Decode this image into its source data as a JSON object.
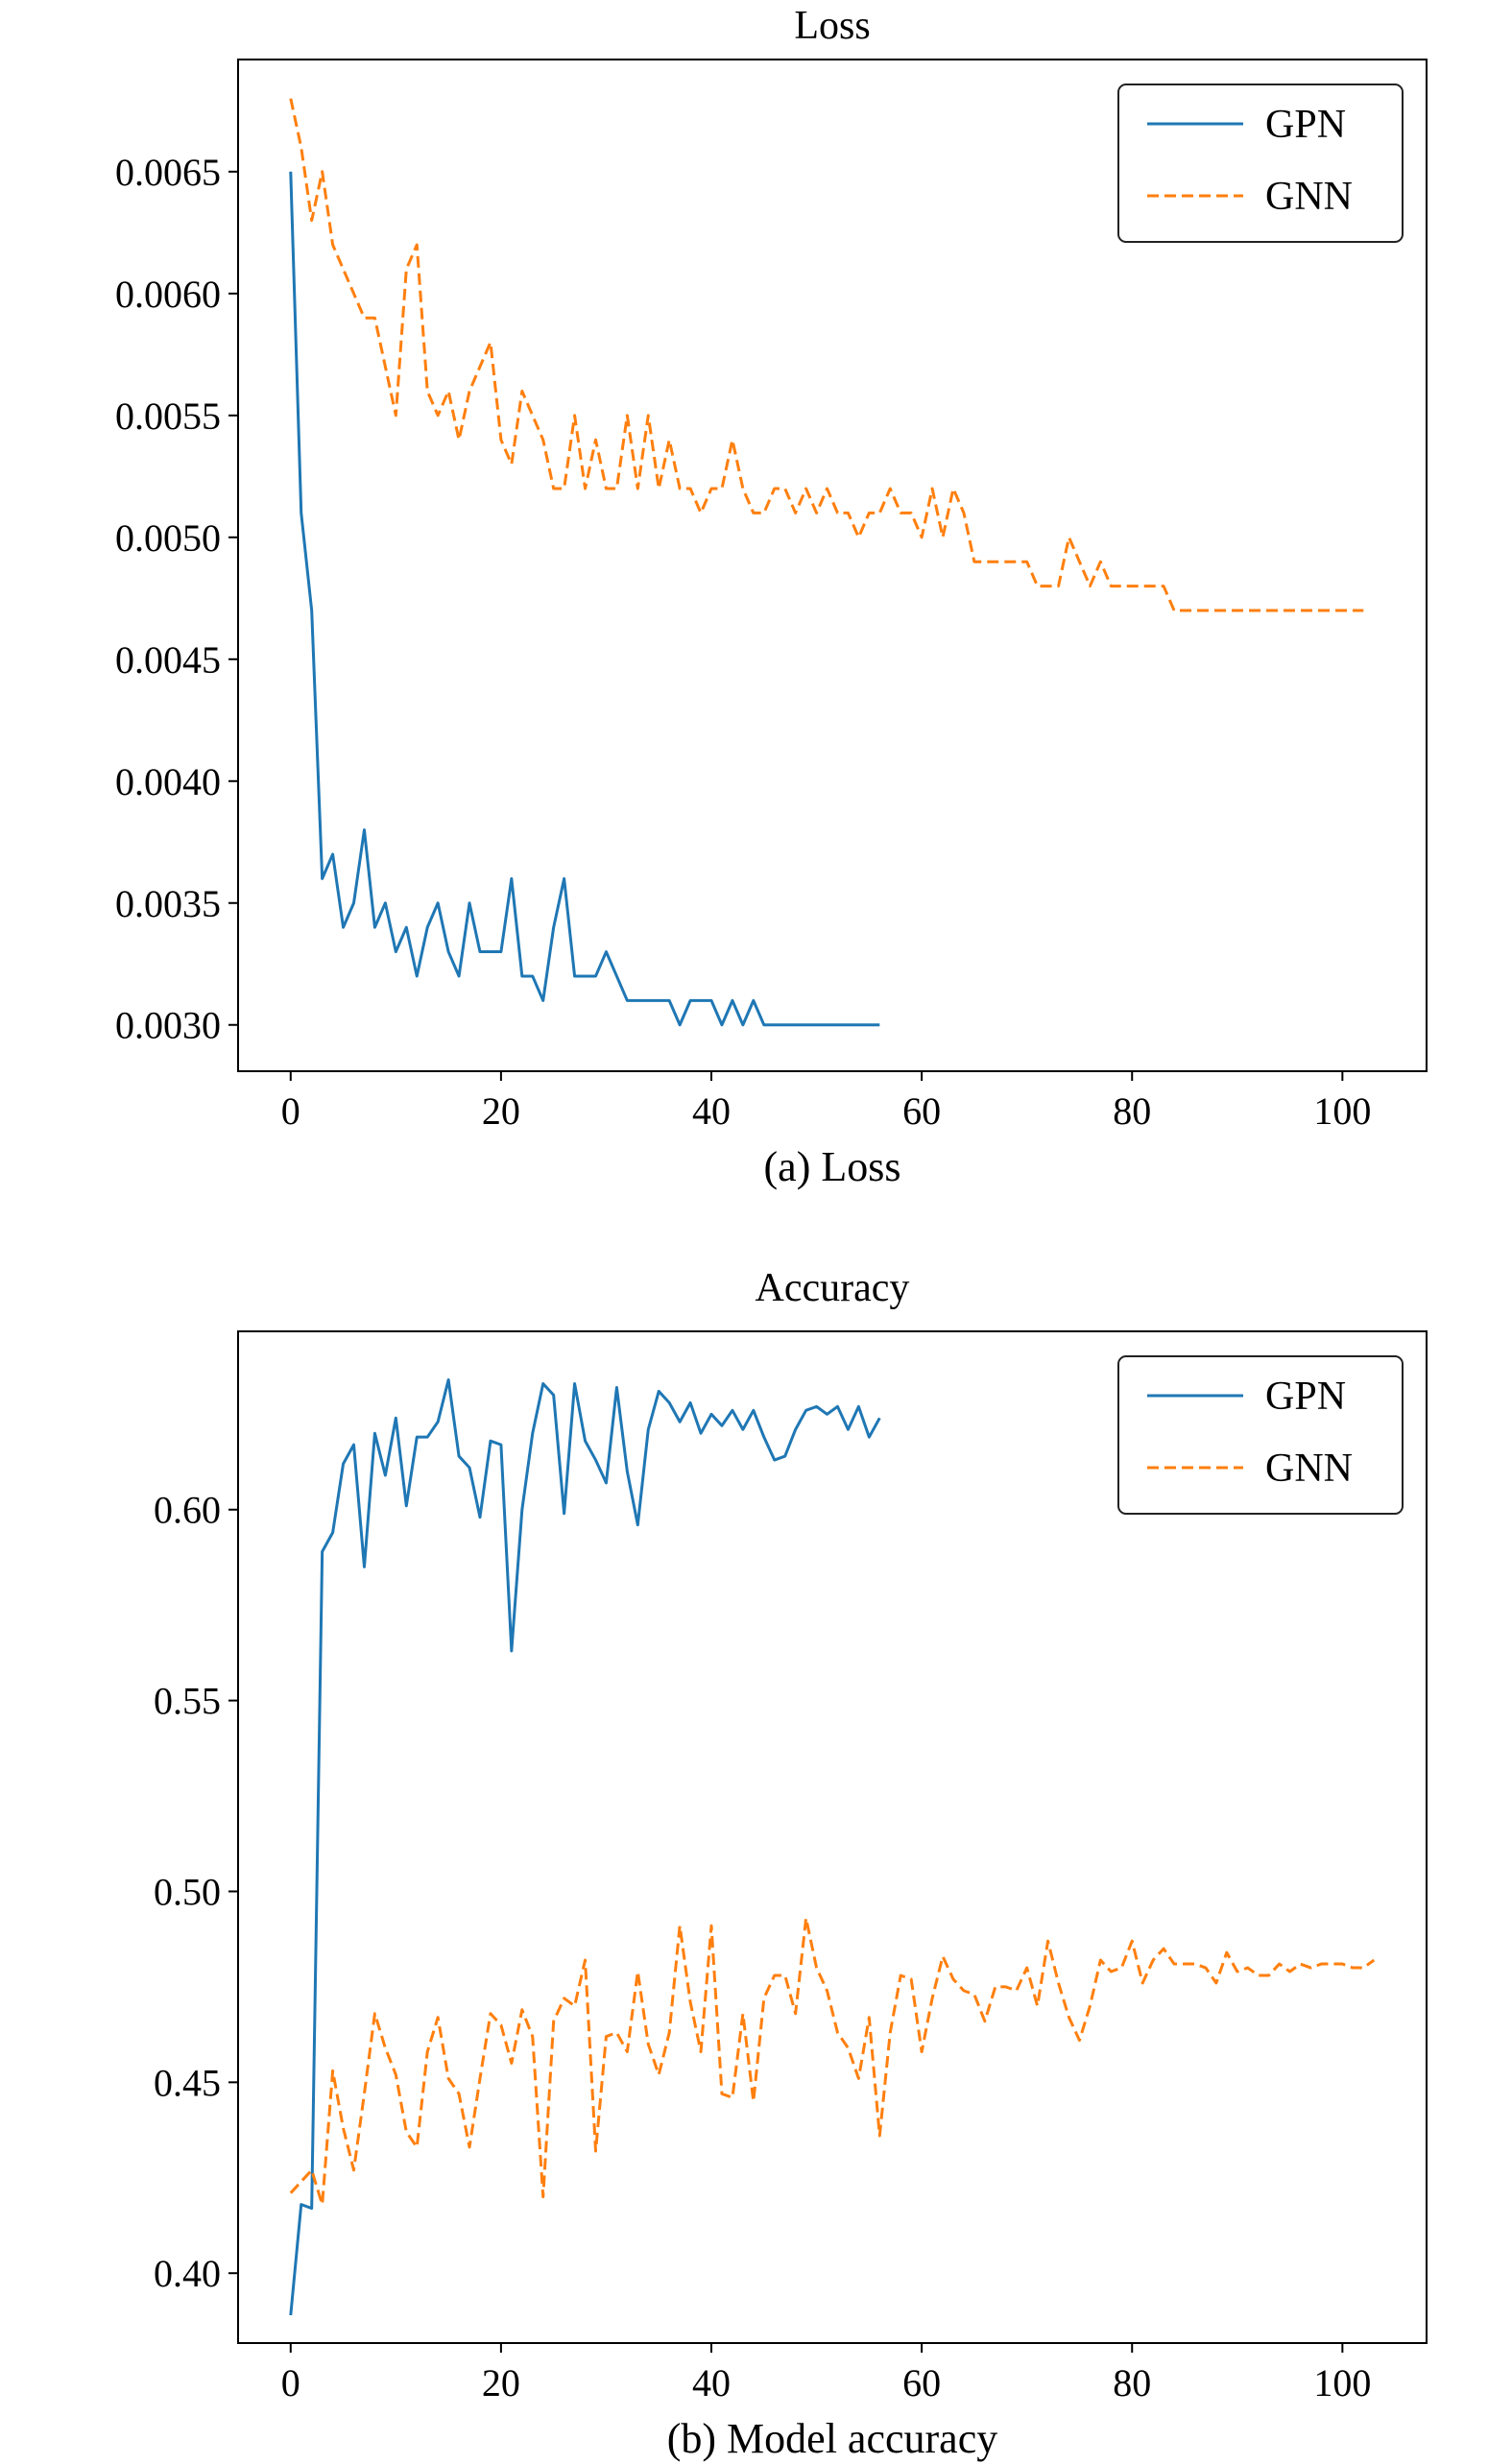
{
  "chart_data": [
    {
      "type": "line",
      "title": "Loss",
      "caption": "(a) Loss",
      "xlabel": "",
      "ylabel": "",
      "xlim": [
        -5,
        108
      ],
      "ylim": [
        0.00281,
        0.00696
      ],
      "xticks": [
        0,
        20,
        40,
        60,
        80,
        100
      ],
      "yticks": [
        0.003,
        0.0035,
        0.004,
        0.0045,
        0.005,
        0.0055,
        0.006,
        0.0065
      ],
      "ytick_labels": [
        "0.0030",
        "0.0035",
        "0.0040",
        "0.0045",
        "0.0050",
        "0.0055",
        "0.0060",
        "0.0065"
      ],
      "xtick_labels": [
        "0",
        "20",
        "40",
        "60",
        "80",
        "100"
      ],
      "legend_position": "top-right",
      "grid": false,
      "series": [
        {
          "name": "GPN",
          "color": "#1f77b4",
          "style": "solid",
          "x": [
            0,
            1,
            2,
            3,
            4,
            5,
            6,
            7,
            8,
            9,
            10,
            11,
            12,
            13,
            14,
            15,
            16,
            17,
            18,
            19,
            20,
            21,
            22,
            23,
            24,
            25,
            26,
            27,
            28,
            29,
            30,
            31,
            32,
            33,
            34,
            35,
            36,
            37,
            38,
            39,
            40,
            41,
            42,
            43,
            44,
            45,
            46,
            47,
            48,
            49,
            50,
            51,
            52,
            53,
            54,
            55,
            56
          ],
          "y": [
            0.0065,
            0.0051,
            0.0047,
            0.0036,
            0.0037,
            0.0034,
            0.0035,
            0.0038,
            0.0034,
            0.0035,
            0.0033,
            0.0034,
            0.0032,
            0.0034,
            0.0035,
            0.0033,
            0.0032,
            0.0035,
            0.0033,
            0.0033,
            0.0033,
            0.0036,
            0.0032,
            0.0032,
            0.0031,
            0.0034,
            0.0036,
            0.0032,
            0.0032,
            0.0032,
            0.0033,
            0.0032,
            0.0031,
            0.0031,
            0.0031,
            0.0031,
            0.0031,
            0.003,
            0.0031,
            0.0031,
            0.0031,
            0.003,
            0.0031,
            0.003,
            0.0031,
            0.003,
            0.003,
            0.003,
            0.003,
            0.003,
            0.003,
            0.003,
            0.003,
            0.003,
            0.003,
            0.003,
            0.003
          ]
        },
        {
          "name": "GNN",
          "color": "#ff7f0e",
          "style": "dashed",
          "x": [
            0,
            1,
            2,
            3,
            4,
            5,
            6,
            7,
            8,
            9,
            10,
            11,
            12,
            13,
            14,
            15,
            16,
            17,
            18,
            19,
            20,
            21,
            22,
            23,
            24,
            25,
            26,
            27,
            28,
            29,
            30,
            31,
            32,
            33,
            34,
            35,
            36,
            37,
            38,
            39,
            40,
            41,
            42,
            43,
            44,
            45,
            46,
            47,
            48,
            49,
            50,
            51,
            52,
            53,
            54,
            55,
            56,
            57,
            58,
            59,
            60,
            61,
            62,
            63,
            64,
            65,
            66,
            67,
            68,
            69,
            70,
            71,
            72,
            73,
            74,
            75,
            76,
            77,
            78,
            79,
            80,
            81,
            82,
            83,
            84,
            85,
            86,
            87,
            88,
            89,
            90,
            91,
            92,
            93,
            94,
            95,
            96,
            97,
            98,
            99,
            100,
            101,
            102
          ],
          "y": [
            0.0068,
            0.0066,
            0.0063,
            0.0065,
            0.0062,
            0.0061,
            0.006,
            0.0059,
            0.0059,
            0.0057,
            0.0055,
            0.0061,
            0.0062,
            0.0056,
            0.0055,
            0.0056,
            0.0054,
            0.0056,
            0.0057,
            0.0058,
            0.0054,
            0.0053,
            0.0056,
            0.0055,
            0.0054,
            0.0052,
            0.0052,
            0.0055,
            0.0052,
            0.0054,
            0.0052,
            0.0052,
            0.0055,
            0.0052,
            0.0055,
            0.0052,
            0.0054,
            0.0052,
            0.0052,
            0.0051,
            0.0052,
            0.0052,
            0.0054,
            0.0052,
            0.0051,
            0.0051,
            0.0052,
            0.0052,
            0.0051,
            0.0052,
            0.0051,
            0.0052,
            0.0051,
            0.0051,
            0.005,
            0.0051,
            0.0051,
            0.0052,
            0.0051,
            0.0051,
            0.005,
            0.0052,
            0.005,
            0.0052,
            0.0051,
            0.0049,
            0.0049,
            0.0049,
            0.0049,
            0.0049,
            0.0049,
            0.0048,
            0.0048,
            0.0048,
            0.005,
            0.0049,
            0.0048,
            0.0049,
            0.0048,
            0.0048,
            0.0048,
            0.0048,
            0.0048,
            0.0048,
            0.0047,
            0.0047,
            0.0047,
            0.0047,
            0.0047,
            0.0047,
            0.0047,
            0.0047,
            0.0047,
            0.0047,
            0.0047,
            0.0047,
            0.0047,
            0.0047,
            0.0047,
            0.0047,
            0.0047,
            0.0047,
            0.0047
          ]
        }
      ]
    },
    {
      "type": "line",
      "title": "Accuracy",
      "caption": "(b) Model accuracy",
      "xlabel": "",
      "ylabel": "",
      "xlim": [
        -5,
        108
      ],
      "ylim": [
        0.3817,
        0.6467
      ],
      "xticks": [
        0,
        20,
        40,
        60,
        80,
        100
      ],
      "yticks": [
        0.4,
        0.45,
        0.5,
        0.55,
        0.6
      ],
      "ytick_labels": [
        "0.40",
        "0.45",
        "0.50",
        "0.55",
        "0.60"
      ],
      "xtick_labels": [
        "0",
        "20",
        "40",
        "60",
        "80",
        "100"
      ],
      "legend_position": "top-right",
      "grid": false,
      "series": [
        {
          "name": "GPN",
          "color": "#1f77b4",
          "style": "solid",
          "x": [
            0,
            1,
            2,
            3,
            4,
            5,
            6,
            7,
            8,
            9,
            10,
            11,
            12,
            13,
            14,
            15,
            16,
            17,
            18,
            19,
            20,
            21,
            22,
            23,
            24,
            25,
            26,
            27,
            28,
            29,
            30,
            31,
            32,
            33,
            34,
            35,
            36,
            37,
            38,
            39,
            40,
            41,
            42,
            43,
            44,
            45,
            46,
            47,
            48,
            49,
            50,
            51,
            52,
            53,
            54,
            55,
            56
          ],
          "y": [
            0.389,
            0.418,
            0.417,
            0.589,
            0.594,
            0.612,
            0.617,
            0.585,
            0.62,
            0.609,
            0.624,
            0.601,
            0.619,
            0.619,
            0.623,
            0.634,
            0.614,
            0.611,
            0.598,
            0.618,
            0.617,
            0.563,
            0.6,
            0.62,
            0.633,
            0.63,
            0.599,
            0.633,
            0.618,
            0.613,
            0.607,
            0.632,
            0.61,
            0.596,
            0.621,
            0.631,
            0.628,
            0.623,
            0.628,
            0.62,
            0.625,
            0.622,
            0.626,
            0.621,
            0.626,
            0.619,
            0.613,
            0.614,
            0.621,
            0.626,
            0.627,
            0.625,
            0.627,
            0.621,
            0.627,
            0.619,
            0.624
          ]
        },
        {
          "name": "GNN",
          "color": "#ff7f0e",
          "style": "dashed",
          "x": [
            0,
            1,
            2,
            3,
            4,
            5,
            6,
            7,
            8,
            9,
            10,
            11,
            12,
            13,
            14,
            15,
            16,
            17,
            18,
            19,
            20,
            21,
            22,
            23,
            24,
            25,
            26,
            27,
            28,
            29,
            30,
            31,
            32,
            33,
            34,
            35,
            36,
            37,
            38,
            39,
            40,
            41,
            42,
            43,
            44,
            45,
            46,
            47,
            48,
            49,
            50,
            51,
            52,
            53,
            54,
            55,
            56,
            57,
            58,
            59,
            60,
            61,
            62,
            63,
            64,
            65,
            66,
            67,
            68,
            69,
            70,
            71,
            72,
            73,
            74,
            75,
            76,
            77,
            78,
            79,
            80,
            81,
            82,
            83,
            84,
            85,
            86,
            87,
            88,
            89,
            90,
            91,
            92,
            93,
            94,
            95,
            96,
            97,
            98,
            99,
            100,
            101,
            102,
            103
          ],
          "y": [
            0.421,
            0.424,
            0.427,
            0.418,
            0.453,
            0.438,
            0.427,
            0.447,
            0.468,
            0.459,
            0.452,
            0.437,
            0.433,
            0.458,
            0.467,
            0.451,
            0.447,
            0.433,
            0.451,
            0.468,
            0.465,
            0.455,
            0.469,
            0.462,
            0.42,
            0.466,
            0.472,
            0.47,
            0.482,
            0.432,
            0.462,
            0.463,
            0.458,
            0.479,
            0.46,
            0.452,
            0.463,
            0.491,
            0.471,
            0.458,
            0.491,
            0.447,
            0.446,
            0.468,
            0.445,
            0.472,
            0.478,
            0.478,
            0.468,
            0.493,
            0.48,
            0.474,
            0.463,
            0.459,
            0.451,
            0.467,
            0.436,
            0.463,
            0.478,
            0.477,
            0.458,
            0.472,
            0.483,
            0.477,
            0.474,
            0.473,
            0.466,
            0.475,
            0.475,
            0.474,
            0.48,
            0.47,
            0.487,
            0.476,
            0.467,
            0.461,
            0.47,
            0.482,
            0.479,
            0.48,
            0.487,
            0.476,
            0.482,
            0.485,
            0.481,
            0.481,
            0.481,
            0.48,
            0.476,
            0.484,
            0.479,
            0.48,
            0.478,
            0.478,
            0.481,
            0.479,
            0.481,
            0.48,
            0.481,
            0.481,
            0.481,
            0.48,
            0.48,
            0.482
          ]
        }
      ]
    }
  ]
}
